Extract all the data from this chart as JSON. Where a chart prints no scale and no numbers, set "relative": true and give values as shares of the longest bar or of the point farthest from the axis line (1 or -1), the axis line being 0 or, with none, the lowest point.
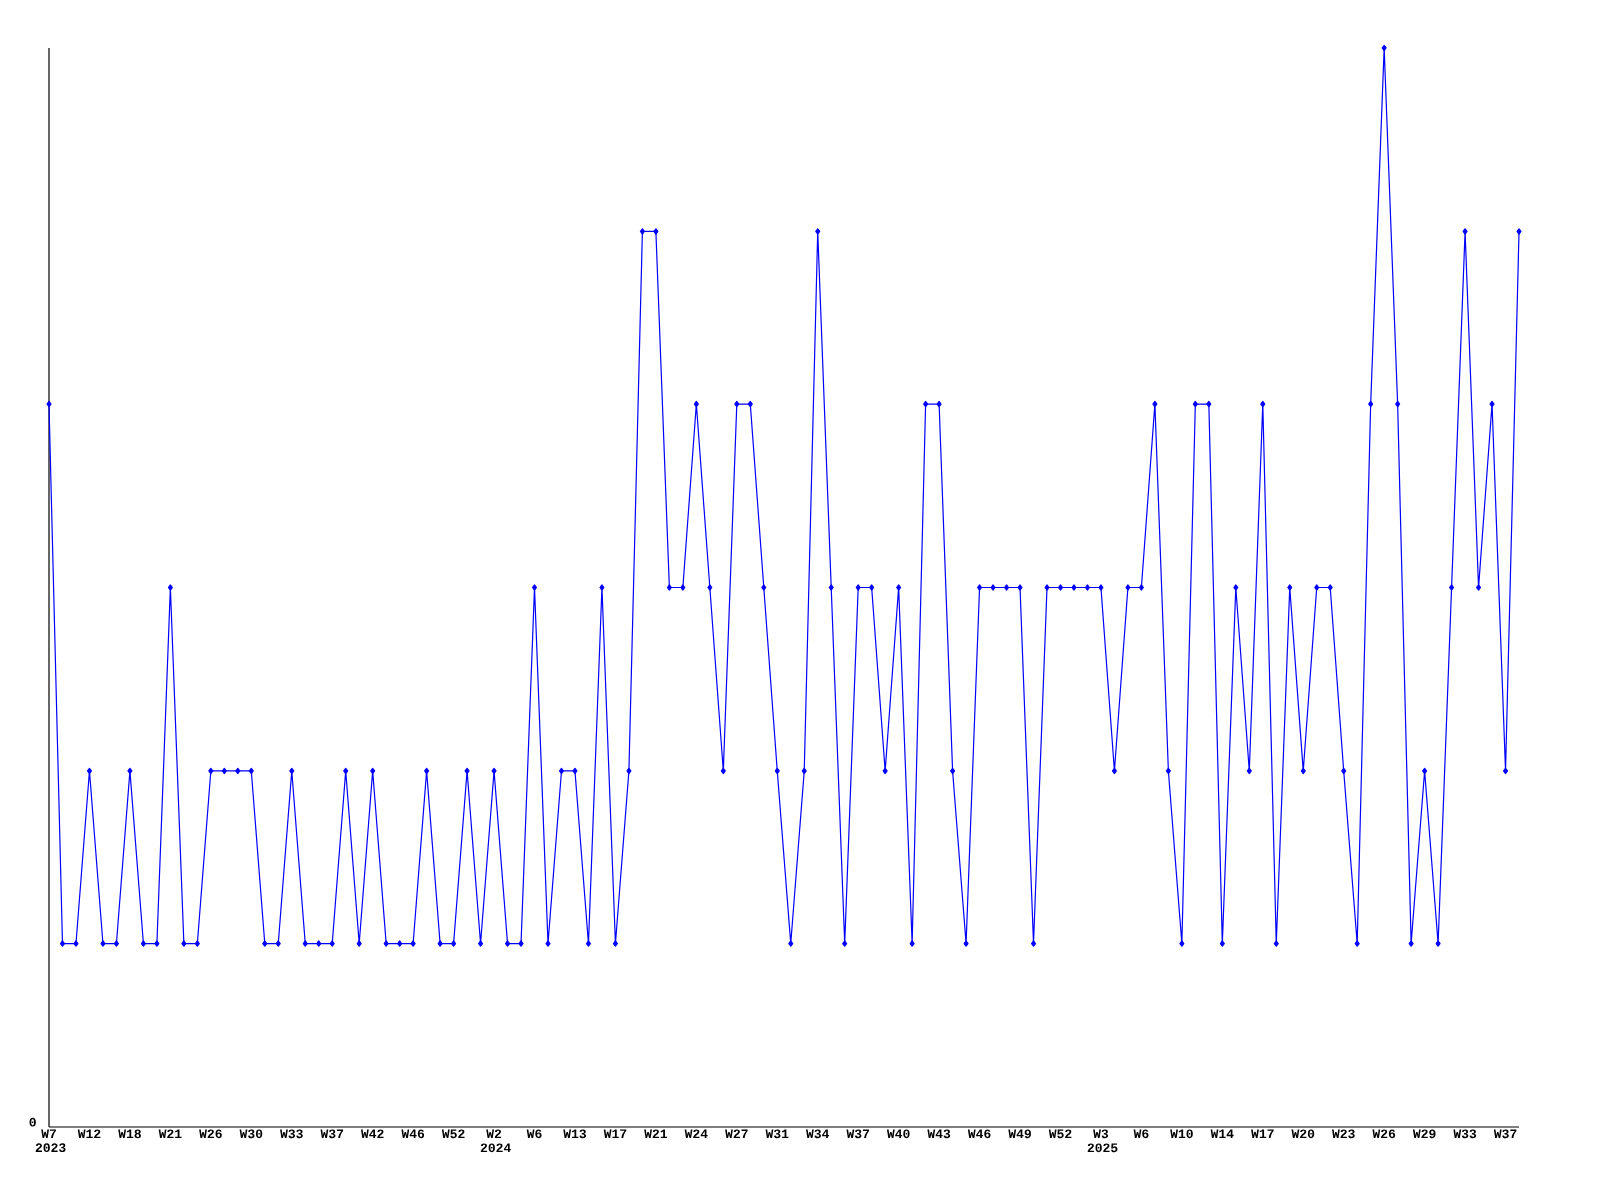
{
  "chart_data": {
    "type": "line",
    "relative": true,
    "marker": "diamond",
    "line_style": "solid",
    "grid": false,
    "categories": [
      "W7 2023",
      null,
      null,
      "W12",
      null,
      null,
      "W18",
      null,
      null,
      "W21",
      null,
      null,
      "W26",
      null,
      null,
      "W30",
      null,
      null,
      "W33",
      null,
      null,
      "W37",
      null,
      null,
      "W42",
      null,
      null,
      "W46",
      null,
      null,
      "W52",
      null,
      null,
      "W2 2024",
      null,
      null,
      "W6",
      null,
      null,
      "W13",
      null,
      null,
      "W17",
      null,
      null,
      "W21",
      null,
      null,
      "W24",
      null,
      null,
      "W27",
      null,
      null,
      "W31",
      null,
      null,
      "W34",
      null,
      null,
      "W37",
      null,
      null,
      "W40",
      null,
      null,
      "W43",
      null,
      null,
      "W46",
      null,
      null,
      "W49",
      null,
      null,
      "W52",
      null,
      null,
      "W3 2025",
      null,
      null,
      "W6",
      null,
      null,
      "W10",
      null,
      null,
      "W14",
      null,
      null,
      "W17",
      null,
      null,
      "W20",
      null,
      null,
      "W23",
      null,
      null,
      "W26",
      null,
      null,
      "W29",
      null,
      null,
      "W33",
      null,
      null,
      "W37",
      null
    ],
    "annotations": [
      "0"
    ],
    "series": [
      {
        "color": "#0000ff",
        "values": [
          0.67,
          0.17,
          0.17,
          0.33,
          0.17,
          0.17,
          0.33,
          0.17,
          0.17,
          0.5,
          0.17,
          0.17,
          0.33,
          0.33,
          0.33,
          0.33,
          0.17,
          0.17,
          0.33,
          0.17,
          0.17,
          0.17,
          0.33,
          0.17,
          0.33,
          0.17,
          0.17,
          0.17,
          0.33,
          0.17,
          0.17,
          0.33,
          0.17,
          0.33,
          0.17,
          0.17,
          0.5,
          0.17,
          0.33,
          0.33,
          0.17,
          0.5,
          0.17,
          0.33,
          0.83,
          0.83,
          0.5,
          0.5,
          0.67,
          0.5,
          0.33,
          0.67,
          0.67,
          0.5,
          0.33,
          0.17,
          0.33,
          0.83,
          0.5,
          0.17,
          0.5,
          0.5,
          0.33,
          0.5,
          0.17,
          0.67,
          0.67,
          0.33,
          0.17,
          0.5,
          0.5,
          0.5,
          0.5,
          0.17,
          0.5,
          0.5,
          0.5,
          0.5,
          0.5,
          0.33,
          0.5,
          0.5,
          0.67,
          0.33,
          0.17,
          0.67,
          0.67,
          0.17,
          0.5,
          0.33,
          0.67,
          0.17,
          0.5,
          0.33,
          0.5,
          0.5,
          0.33,
          0.17,
          0.67,
          1,
          0.67,
          0.17,
          0.33,
          0.17,
          0.5,
          0.83,
          0.5,
          0.67,
          0.33,
          0.83
        ]
      }
    ]
  }
}
